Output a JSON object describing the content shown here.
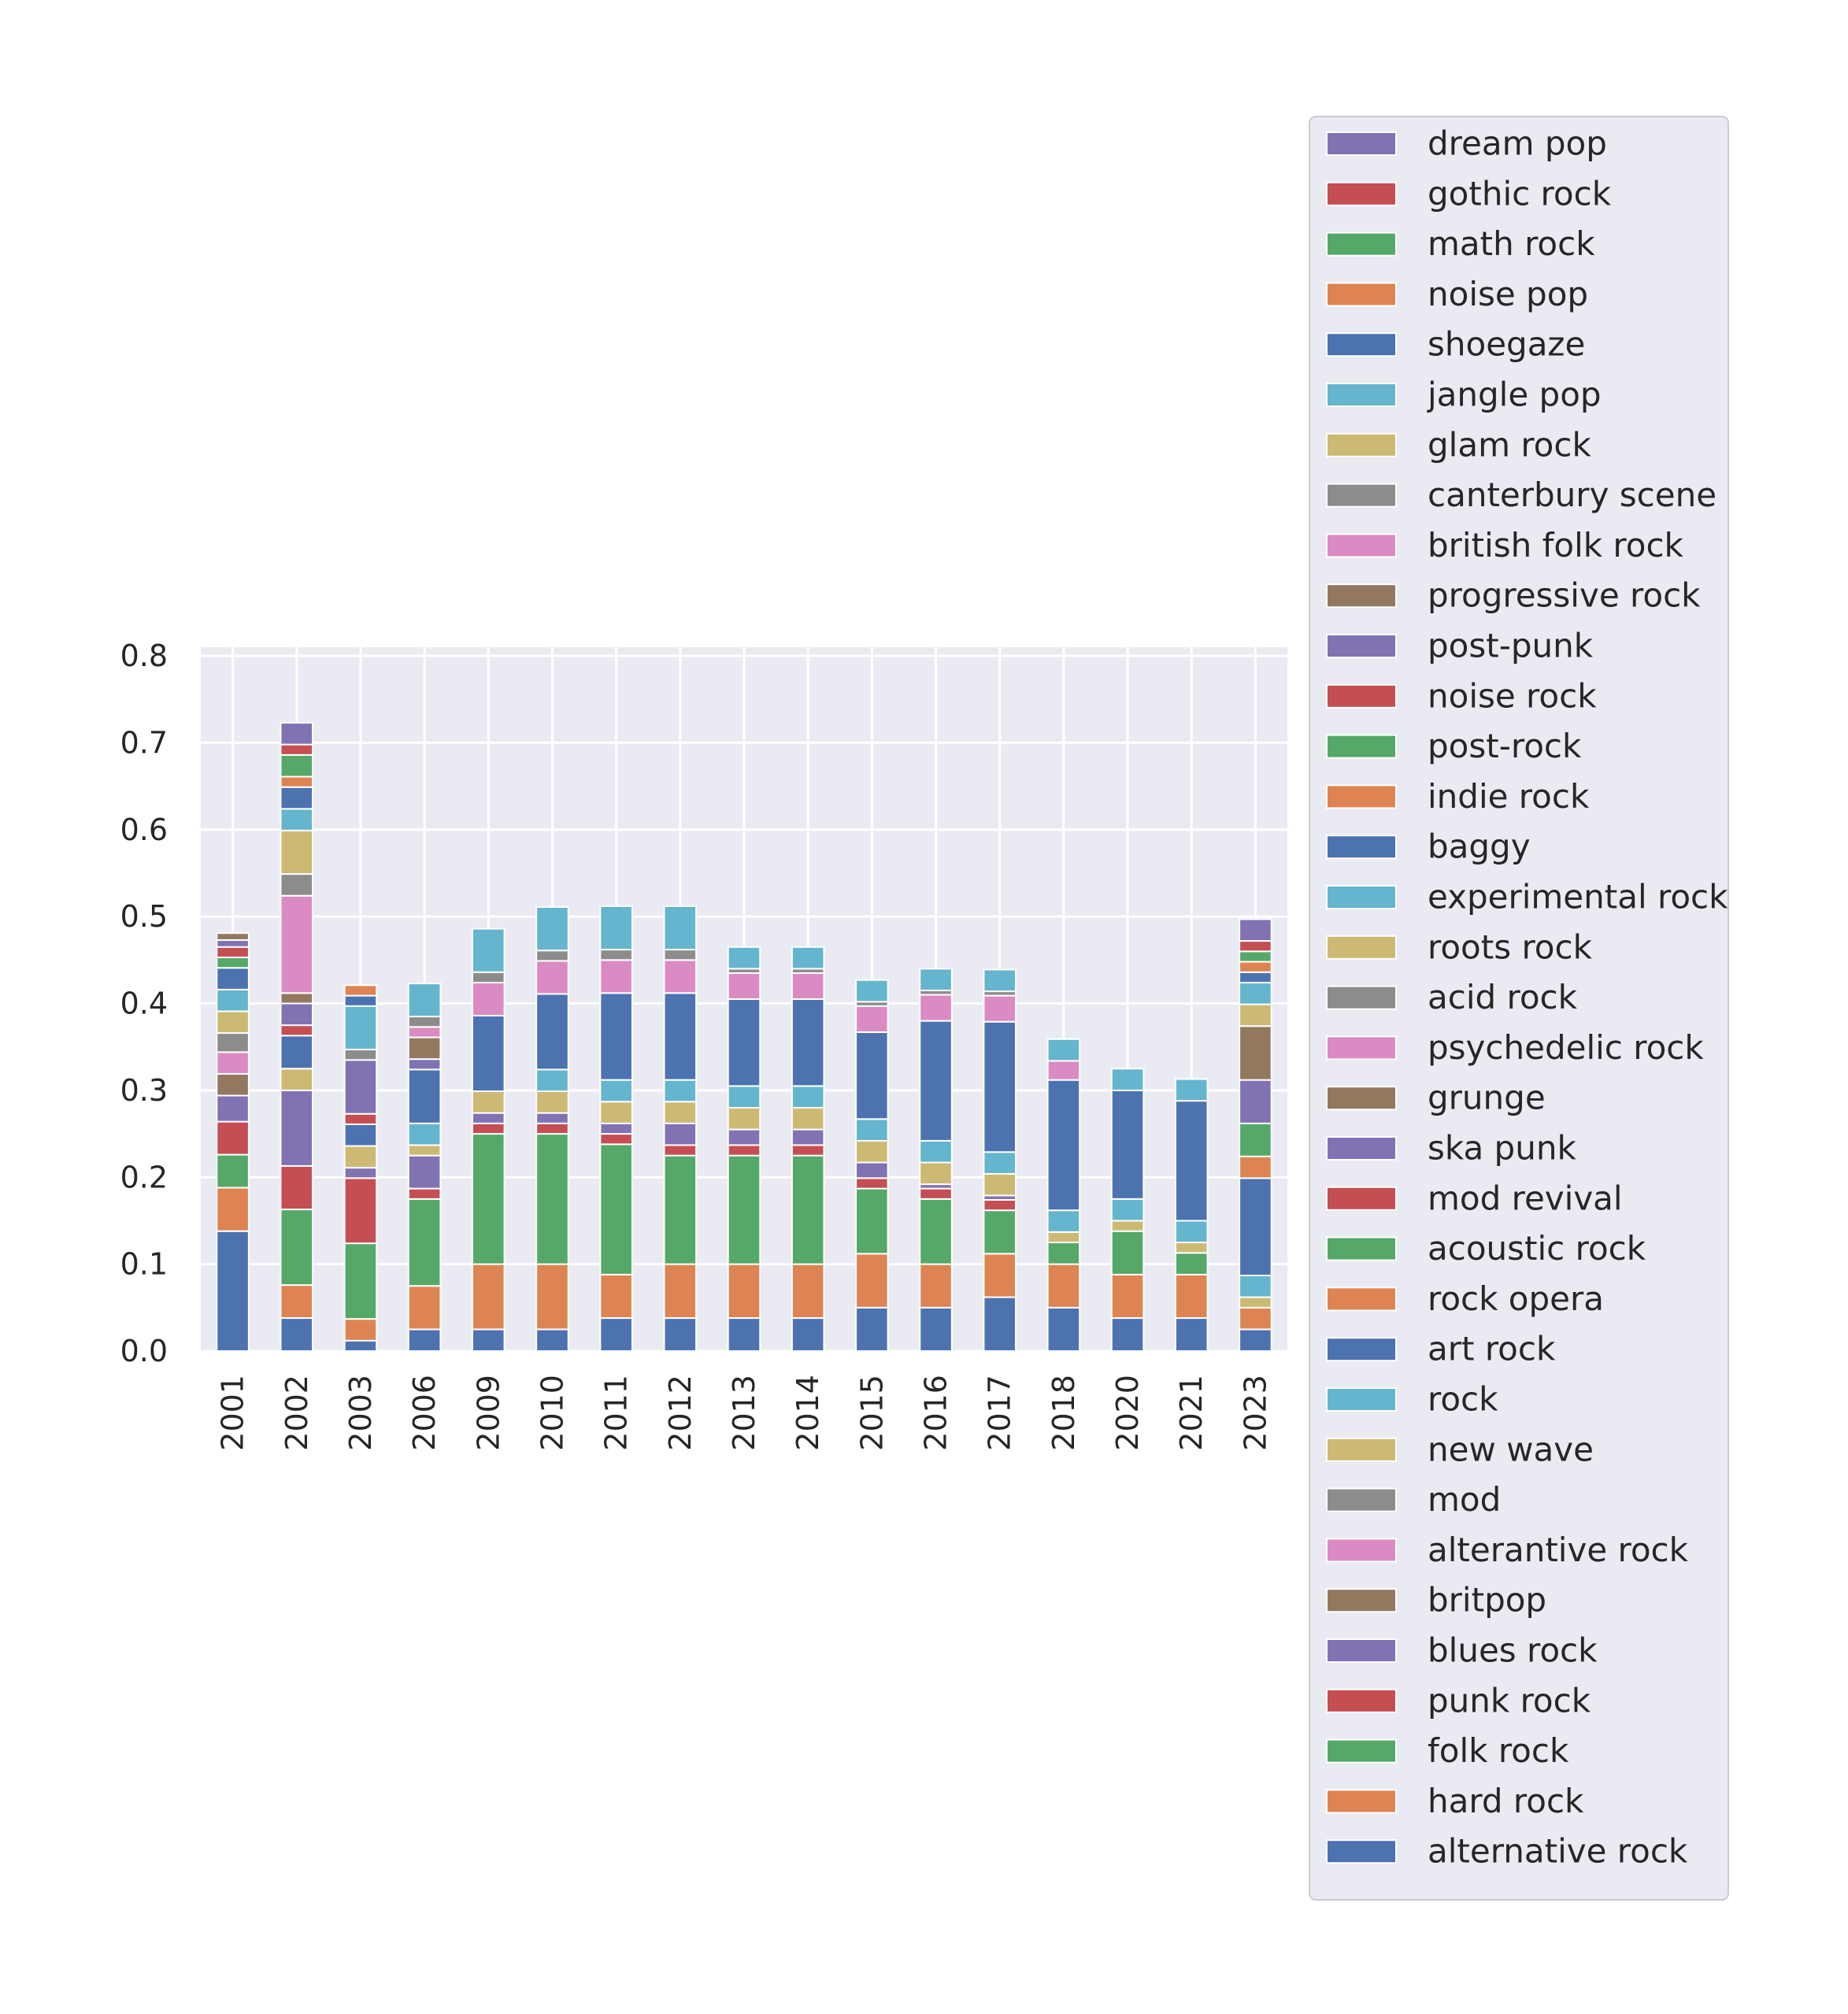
{
  "chart_data": {
    "type": "bar",
    "stacked": true,
    "title": "",
    "xlabel": "",
    "ylabel": "",
    "ylim": [
      0,
      0.81
    ],
    "yticks": [
      0.0,
      0.1,
      0.2,
      0.3,
      0.4,
      0.5,
      0.6,
      0.7,
      0.8
    ],
    "ytick_labels": [
      "0.0",
      "0.1",
      "0.2",
      "0.3",
      "0.4",
      "0.5",
      "0.6",
      "0.7",
      "0.8"
    ],
    "grid": true,
    "legend_position": "right, outside plot",
    "categories": [
      "2001",
      "2002",
      "2003",
      "2006",
      "2009",
      "2010",
      "2011",
      "2012",
      "2013",
      "2014",
      "2015",
      "2016",
      "2017",
      "2018",
      "2020",
      "2021",
      "2023"
    ],
    "palette": [
      "#4c72b0",
      "#dd8452",
      "#55a868",
      "#c44e52",
      "#8172b3",
      "#937860",
      "#da8bc3",
      "#8c8c8c",
      "#ccb974",
      "#64b5cd"
    ],
    "series": [
      {
        "name": "alternative rock",
        "color": "#4c72b0",
        "values": [
          0.138,
          0.038,
          0.012,
          0.025,
          0.025,
          0.025,
          0.038,
          0.038,
          0.038,
          0.038,
          0.05,
          0.05,
          0.062,
          0.05,
          0.038,
          0.038,
          0.025
        ]
      },
      {
        "name": "hard rock",
        "color": "#dd8452",
        "values": [
          0.05,
          0.038,
          0.025,
          0.05,
          0.075,
          0.075,
          0.05,
          0.062,
          0.062,
          0.062,
          0.062,
          0.05,
          0.05,
          0.05,
          0.05,
          0.05,
          0.025
        ]
      },
      {
        "name": "folk rock",
        "color": "#55a868",
        "values": [
          0.038,
          0.087,
          0.087,
          0.1,
          0.15,
          0.15,
          0.15,
          0.125,
          0.125,
          0.125,
          0.075,
          0.075,
          0.05,
          0.025,
          0.05,
          0.025,
          0.0
        ]
      },
      {
        "name": "punk rock",
        "color": "#c44e52",
        "values": [
          0.038,
          0.05,
          0.075,
          0.012,
          0.012,
          0.012,
          0.012,
          0.012,
          0.012,
          0.012,
          0.012,
          0.012,
          0.012,
          0.0,
          0.0,
          0.0,
          0.0
        ]
      },
      {
        "name": "blues rock",
        "color": "#8172b3",
        "values": [
          0.03,
          0.087,
          0.012,
          0.038,
          0.012,
          0.012,
          0.012,
          0.025,
          0.018,
          0.018,
          0.018,
          0.005,
          0.005,
          0.0,
          0.0,
          0.0,
          0.0
        ]
      },
      {
        "name": "britpop",
        "color": "#937860",
        "values": [
          0.025,
          0.0,
          0.0,
          0.0,
          0.0,
          0.0,
          0.0,
          0.0,
          0.0,
          0.0,
          0.0,
          0.0,
          0.0,
          0.0,
          0.0,
          0.0,
          0.0
        ]
      },
      {
        "name": "alterantive rock",
        "color": "#da8bc3",
        "values": [
          0.025,
          0.0,
          0.0,
          0.0,
          0.0,
          0.0,
          0.0,
          0.0,
          0.0,
          0.0,
          0.0,
          0.0,
          0.0,
          0.0,
          0.0,
          0.0,
          0.0
        ]
      },
      {
        "name": "mod",
        "color": "#8c8c8c",
        "values": [
          0.022,
          0.0,
          0.0,
          0.0,
          0.0,
          0.0,
          0.0,
          0.0,
          0.0,
          0.0,
          0.0,
          0.0,
          0.0,
          0.0,
          0.0,
          0.0,
          0.0
        ]
      },
      {
        "name": "new wave",
        "color": "#ccb974",
        "values": [
          0.025,
          0.025,
          0.025,
          0.012,
          0.025,
          0.025,
          0.025,
          0.025,
          0.025,
          0.025,
          0.025,
          0.025,
          0.025,
          0.012,
          0.012,
          0.012,
          0.012
        ]
      },
      {
        "name": "rock",
        "color": "#64b5cd",
        "values": [
          0.025,
          0.0,
          0.0,
          0.025,
          0.0,
          0.025,
          0.025,
          0.025,
          0.025,
          0.025,
          0.025,
          0.025,
          0.025,
          0.025,
          0.025,
          0.025,
          0.025
        ]
      },
      {
        "name": "art rock",
        "color": "#4c72b0",
        "values": [
          0.025,
          0.038,
          0.025,
          0.062,
          0.087,
          0.087,
          0.1,
          0.1,
          0.1,
          0.1,
          0.1,
          0.138,
          0.15,
          0.15,
          0.125,
          0.138,
          0.112
        ]
      },
      {
        "name": "rock opera",
        "color": "#dd8452",
        "values": [
          0.0,
          0.0,
          0.0,
          0.0,
          0.0,
          0.0,
          0.0,
          0.0,
          0.0,
          0.0,
          0.0,
          0.0,
          0.0,
          0.0,
          0.0,
          0.0,
          0.025
        ]
      },
      {
        "name": "acoustic rock",
        "color": "#55a868",
        "values": [
          0.012,
          0.0,
          0.0,
          0.0,
          0.0,
          0.0,
          0.0,
          0.0,
          0.0,
          0.0,
          0.0,
          0.0,
          0.0,
          0.0,
          0.0,
          0.0,
          0.038
        ]
      },
      {
        "name": "mod revival",
        "color": "#c44e52",
        "values": [
          0.012,
          0.012,
          0.012,
          0.0,
          0.0,
          0.0,
          0.0,
          0.0,
          0.0,
          0.0,
          0.0,
          0.0,
          0.0,
          0.0,
          0.0,
          0.0,
          0.0
        ]
      },
      {
        "name": "ska punk",
        "color": "#8172b3",
        "values": [
          0.008,
          0.025,
          0.062,
          0.012,
          0.0,
          0.0,
          0.0,
          0.0,
          0.0,
          0.0,
          0.0,
          0.0,
          0.0,
          0.0,
          0.0,
          0.0,
          0.05
        ]
      },
      {
        "name": "grunge",
        "color": "#937860",
        "values": [
          0.008,
          0.012,
          0.0,
          0.025,
          0.0,
          0.0,
          0.0,
          0.0,
          0.0,
          0.0,
          0.0,
          0.0,
          0.0,
          0.0,
          0.0,
          0.0,
          0.062
        ]
      },
      {
        "name": "psychedelic rock",
        "color": "#da8bc3",
        "values": [
          0.0,
          0.0,
          0.0,
          0.0,
          0.0,
          0.0,
          0.0,
          0.0,
          0.0,
          0.0,
          0.0,
          0.0,
          0.0,
          0.0,
          0.0,
          0.0,
          0.0
        ]
      },
      {
        "name": "acid rock",
        "color": "#8c8c8c",
        "values": [
          0.0,
          0.0,
          0.0,
          0.0,
          0.0,
          0.0,
          0.0,
          0.0,
          0.0,
          0.0,
          0.0,
          0.0,
          0.0,
          0.0,
          0.0,
          0.0,
          0.0
        ]
      },
      {
        "name": "roots rock",
        "color": "#ccb974",
        "values": [
          0.0,
          0.0,
          0.0,
          0.0,
          0.0,
          0.0,
          0.0,
          0.0,
          0.0,
          0.0,
          0.0,
          0.0,
          0.0,
          0.0,
          0.0,
          0.0,
          0.025
        ]
      },
      {
        "name": "experimental rock",
        "color": "#64b5cd",
        "values": [
          0.0,
          0.0,
          0.0,
          0.0,
          0.0,
          0.0,
          0.0,
          0.0,
          0.0,
          0.0,
          0.0,
          0.0,
          0.0,
          0.0,
          0.0,
          0.0,
          0.025
        ]
      },
      {
        "name": "baggy",
        "color": "#4c72b0",
        "values": [
          0.0,
          0.0,
          0.0,
          0.0,
          0.0,
          0.0,
          0.0,
          0.0,
          0.0,
          0.0,
          0.0,
          0.0,
          0.0,
          0.0,
          0.0,
          0.0,
          0.012
        ]
      },
      {
        "name": "indie rock",
        "color": "#dd8452",
        "values": [
          0.0,
          0.0,
          0.0,
          0.0,
          0.0,
          0.0,
          0.0,
          0.0,
          0.0,
          0.0,
          0.0,
          0.0,
          0.0,
          0.0,
          0.0,
          0.0,
          0.012
        ]
      },
      {
        "name": "post-rock",
        "color": "#55a868",
        "values": [
          0.0,
          0.0,
          0.0,
          0.0,
          0.0,
          0.0,
          0.0,
          0.0,
          0.0,
          0.0,
          0.0,
          0.0,
          0.0,
          0.0,
          0.0,
          0.0,
          0.012
        ]
      },
      {
        "name": "noise rock",
        "color": "#c44e52",
        "values": [
          0.0,
          0.0,
          0.0,
          0.0,
          0.0,
          0.0,
          0.0,
          0.0,
          0.0,
          0.0,
          0.0,
          0.0,
          0.0,
          0.0,
          0.0,
          0.0,
          0.012
        ]
      },
      {
        "name": "post-punk",
        "color": "#8172b3",
        "values": [
          0.0,
          0.0,
          0.0,
          0.0,
          0.0,
          0.0,
          0.0,
          0.0,
          0.0,
          0.0,
          0.0,
          0.0,
          0.0,
          0.0,
          0.0,
          0.0,
          0.025
        ]
      },
      {
        "name": "progressive rock",
        "color": "#937860",
        "values": [
          0.0,
          0.0,
          0.0,
          0.0,
          0.0,
          0.0,
          0.0,
          0.0,
          0.0,
          0.0,
          0.0,
          0.0,
          0.0,
          0.0,
          0.0,
          0.0,
          0.0
        ]
      },
      {
        "name": "british folk rock",
        "color": "#da8bc3",
        "values": [
          0.0,
          0.112,
          0.0,
          0.012,
          0.038,
          0.038,
          0.038,
          0.038,
          0.03,
          0.03,
          0.03,
          0.03,
          0.03,
          0.022,
          0.0,
          0.0,
          0.0
        ]
      },
      {
        "name": "canterbury scene",
        "color": "#8c8c8c",
        "values": [
          0.0,
          0.025,
          0.012,
          0.012,
          0.012,
          0.012,
          0.012,
          0.012,
          0.005,
          0.005,
          0.005,
          0.005,
          0.005,
          0.0,
          0.0,
          0.0,
          0.0
        ]
      },
      {
        "name": "glam rock",
        "color": "#ccb974",
        "values": [
          0.0,
          0.05,
          0.0,
          0.0,
          0.0,
          0.0,
          0.0,
          0.0,
          0.0,
          0.0,
          0.0,
          0.0,
          0.0,
          0.0,
          0.0,
          0.0,
          0.0
        ]
      },
      {
        "name": "jangle pop",
        "color": "#64b5cd",
        "values": [
          0.0,
          0.025,
          0.05,
          0.038,
          0.05,
          0.05,
          0.05,
          0.05,
          0.025,
          0.025,
          0.025,
          0.025,
          0.025,
          0.025,
          0.025,
          0.025,
          0.0
        ]
      },
      {
        "name": "shoegaze",
        "color": "#4c72b0",
        "values": [
          0.0,
          0.025,
          0.012,
          0.0,
          0.0,
          0.0,
          0.0,
          0.0,
          0.0,
          0.0,
          0.0,
          0.0,
          0.0,
          0.0,
          0.0,
          0.0,
          0.0
        ]
      },
      {
        "name": "noise pop",
        "color": "#dd8452",
        "values": [
          0.0,
          0.012,
          0.012,
          0.0,
          0.0,
          0.0,
          0.0,
          0.0,
          0.0,
          0.0,
          0.0,
          0.0,
          0.0,
          0.0,
          0.0,
          0.0,
          0.0
        ]
      },
      {
        "name": "math rock",
        "color": "#55a868",
        "values": [
          0.0,
          0.025,
          0.0,
          0.0,
          0.0,
          0.0,
          0.0,
          0.0,
          0.0,
          0.0,
          0.0,
          0.0,
          0.0,
          0.0,
          0.0,
          0.0,
          0.0
        ]
      },
      {
        "name": "gothic rock",
        "color": "#c44e52",
        "values": [
          0.0,
          0.012,
          0.0,
          0.0,
          0.0,
          0.0,
          0.0,
          0.0,
          0.0,
          0.0,
          0.0,
          0.0,
          0.0,
          0.0,
          0.0,
          0.0,
          0.0
        ]
      },
      {
        "name": "dream pop",
        "color": "#8172b3",
        "values": [
          0.0,
          0.025,
          0.0,
          0.0,
          0.0,
          0.0,
          0.0,
          0.0,
          0.0,
          0.0,
          0.0,
          0.0,
          0.0,
          0.0,
          0.0,
          0.0,
          0.0
        ]
      }
    ],
    "legend_entries": [
      "dream pop",
      "gothic rock",
      "math rock",
      "noise pop",
      "shoegaze",
      "jangle pop",
      "glam rock",
      "canterbury scene",
      "british folk rock",
      "progressive rock",
      "post-punk",
      "noise rock",
      "post-rock",
      "indie rock",
      "baggy",
      "experimental rock",
      "roots rock",
      "acid rock",
      "psychedelic rock",
      "grunge",
      "ska punk",
      "mod revival",
      "acoustic rock",
      "rock opera",
      "art rock",
      "rock",
      "new wave",
      "mod",
      "alterantive rock",
      "britpop",
      "blues rock",
      "punk rock",
      "folk rock",
      "hard rock",
      "alternative rock"
    ]
  }
}
